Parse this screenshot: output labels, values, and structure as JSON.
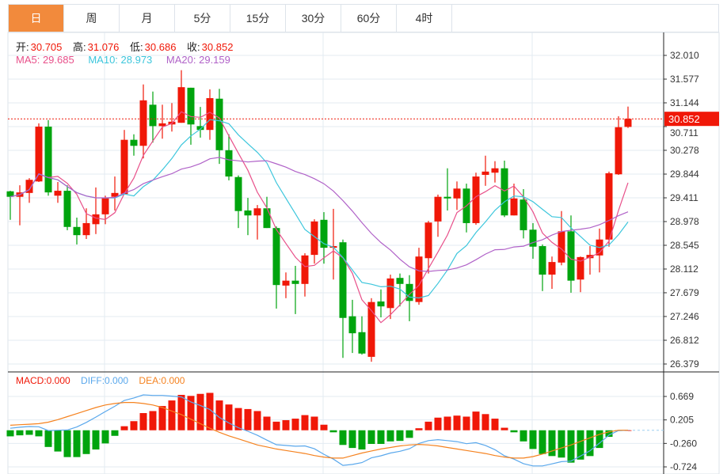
{
  "tabs": [
    {
      "label": "日",
      "active": true
    },
    {
      "label": "周"
    },
    {
      "label": "月"
    },
    {
      "label": "5分"
    },
    {
      "label": "15分"
    },
    {
      "label": "30分"
    },
    {
      "label": "60分"
    },
    {
      "label": "4时"
    }
  ],
  "ohlc_legend": {
    "open_label": "开:",
    "open": "30.705",
    "high_label": "高:",
    "high": "31.076",
    "low_label": "低:",
    "low": "30.686",
    "close_label": "收:",
    "close": "30.852"
  },
  "ma_legend": {
    "ma5": "MA5: 29.685",
    "ma10": "MA10: 28.973",
    "ma20": "MA20: 29.159"
  },
  "macd_legend": {
    "macd": "MACD:0.000",
    "diff": "DIFF:0.000",
    "dea": "DEA:0.000"
  },
  "colors": {
    "up": "#f01808",
    "down": "#00a40e",
    "ma5": "#e8508a",
    "ma10": "#3cc6dc",
    "ma20": "#b062c8",
    "diff": "#5aa8ec",
    "dea": "#f5821f",
    "accent": "#f28a3c"
  },
  "chart_data": [
    {
      "type": "candlestick",
      "title": "Daily",
      "y_ticks": [
        "32.010",
        "31.577",
        "31.144",
        "30.711",
        "30.278",
        "29.844",
        "29.411",
        "28.978",
        "28.545",
        "28.112",
        "27.679",
        "27.246",
        "26.812",
        "26.379"
      ],
      "ylim": [
        26.379,
        32.01
      ],
      "last_price": "30.852",
      "ohlc": [
        [
          29.53,
          29.54,
          29.01,
          29.43
        ],
        [
          29.43,
          29.64,
          28.91,
          29.51
        ],
        [
          29.5,
          29.77,
          29.32,
          29.74
        ],
        [
          29.71,
          30.77,
          29.7,
          30.71
        ],
        [
          30.71,
          30.83,
          29.45,
          29.51
        ],
        [
          29.45,
          29.7,
          29.32,
          29.54
        ],
        [
          29.54,
          29.64,
          28.82,
          28.88
        ],
        [
          28.88,
          29.05,
          28.56,
          28.73
        ],
        [
          28.73,
          29.22,
          28.66,
          28.95
        ],
        [
          28.93,
          29.6,
          28.75,
          29.11
        ],
        [
          29.11,
          29.45,
          28.93,
          29.41
        ],
        [
          29.43,
          29.8,
          29.18,
          29.5
        ],
        [
          29.48,
          30.65,
          29.48,
          30.47
        ],
        [
          30.47,
          30.57,
          30.18,
          30.36
        ],
        [
          30.36,
          31.48,
          30.13,
          31.19
        ],
        [
          31.11,
          31.35,
          30.42,
          30.72
        ],
        [
          30.72,
          31.11,
          30.49,
          30.77
        ],
        [
          30.75,
          31.14,
          30.62,
          30.8
        ],
        [
          30.78,
          31.74,
          30.78,
          31.43
        ],
        [
          31.42,
          31.42,
          30.38,
          30.75
        ],
        [
          30.72,
          31.07,
          30.51,
          30.65
        ],
        [
          30.65,
          31.39,
          30.47,
          31.23
        ],
        [
          31.22,
          31.4,
          30.03,
          30.28
        ],
        [
          30.28,
          30.57,
          29.73,
          29.8
        ],
        [
          29.79,
          29.82,
          28.86,
          29.17
        ],
        [
          29.18,
          29.41,
          28.73,
          29.09
        ],
        [
          29.09,
          29.28,
          28.65,
          29.22
        ],
        [
          29.22,
          29.43,
          28.86,
          28.86
        ],
        [
          28.86,
          28.89,
          27.39,
          27.82
        ],
        [
          27.81,
          28.05,
          27.58,
          27.9
        ],
        [
          27.9,
          28.17,
          27.29,
          27.84
        ],
        [
          27.84,
          28.4,
          27.61,
          28.36
        ],
        [
          28.37,
          29.02,
          28.21,
          28.98
        ],
        [
          29.01,
          29.15,
          28.21,
          28.5
        ],
        [
          28.5,
          29.21,
          27.92,
          28.53
        ],
        [
          28.6,
          28.65,
          26.49,
          27.22
        ],
        [
          27.25,
          27.55,
          26.58,
          26.94
        ],
        [
          26.96,
          27.25,
          26.55,
          26.57
        ],
        [
          26.51,
          27.58,
          26.42,
          27.51
        ],
        [
          27.52,
          27.74,
          27.23,
          27.43
        ],
        [
          27.4,
          28.01,
          27.2,
          27.94
        ],
        [
          27.95,
          28.03,
          27.43,
          27.84
        ],
        [
          27.84,
          28.0,
          27.16,
          27.53
        ],
        [
          27.51,
          28.5,
          27.46,
          28.34
        ],
        [
          28.31,
          28.99,
          28.03,
          28.96
        ],
        [
          28.98,
          29.47,
          28.7,
          29.43
        ],
        [
          29.43,
          29.95,
          29.18,
          29.4
        ],
        [
          29.4,
          29.71,
          29.19,
          29.58
        ],
        [
          29.58,
          29.67,
          28.78,
          28.95
        ],
        [
          28.95,
          29.87,
          28.92,
          29.8
        ],
        [
          29.83,
          30.18,
          29.63,
          29.89
        ],
        [
          29.87,
          30.08,
          29.69,
          29.95
        ],
        [
          29.95,
          30.09,
          29.06,
          29.09
        ],
        [
          29.09,
          29.67,
          29.09,
          29.4
        ],
        [
          29.38,
          29.57,
          28.67,
          28.82
        ],
        [
          28.83,
          28.95,
          28.3,
          28.52
        ],
        [
          28.53,
          28.56,
          27.71,
          28.01
        ],
        [
          28.01,
          28.34,
          27.75,
          28.24
        ],
        [
          28.23,
          29.17,
          28.18,
          28.8
        ],
        [
          28.8,
          29.09,
          27.68,
          27.9
        ],
        [
          27.92,
          28.34,
          27.69,
          28.33
        ],
        [
          28.31,
          28.53,
          28.01,
          28.37
        ],
        [
          28.36,
          28.85,
          28.05,
          28.65
        ],
        [
          28.65,
          29.89,
          28.52,
          29.86
        ],
        [
          29.84,
          30.9,
          29.83,
          30.7
        ],
        [
          30.705,
          31.076,
          30.686,
          30.852
        ]
      ],
      "ohlc_order": [
        "open",
        "high",
        "low",
        "close"
      ],
      "moving_averages": [
        5,
        10,
        20
      ]
    },
    {
      "type": "bar",
      "title": "MACD",
      "y_ticks": [
        "0.669",
        "0.205",
        "-0.260",
        "-0.724"
      ],
      "ylim": [
        -0.724,
        0.669
      ],
      "macd": [
        -0.12,
        -0.1,
        -0.09,
        -0.12,
        -0.33,
        -0.42,
        -0.53,
        -0.53,
        -0.47,
        -0.38,
        -0.26,
        -0.11,
        0.08,
        0.18,
        0.34,
        0.38,
        0.48,
        0.59,
        0.7,
        0.68,
        0.72,
        0.74,
        0.59,
        0.51,
        0.44,
        0.42,
        0.38,
        0.27,
        0.17,
        0.2,
        0.23,
        0.3,
        0.27,
        0.11,
        -0.04,
        -0.29,
        -0.35,
        -0.38,
        -0.27,
        -0.27,
        -0.22,
        -0.21,
        -0.15,
        0.04,
        0.17,
        0.25,
        0.27,
        0.29,
        0.27,
        0.37,
        0.32,
        0.23,
        0.05,
        -0.04,
        -0.22,
        -0.37,
        -0.47,
        -0.51,
        -0.54,
        -0.64,
        -0.58,
        -0.51,
        -0.35,
        -0.13,
        -0.01,
        0.0
      ],
      "dea": [
        0.1,
        0.11,
        0.12,
        0.13,
        0.16,
        0.21,
        0.27,
        0.33,
        0.39,
        0.45,
        0.5,
        0.53,
        0.55,
        0.55,
        0.53,
        0.5,
        0.45,
        0.38,
        0.31,
        0.22,
        0.13,
        0.04,
        -0.04,
        -0.11,
        -0.17,
        -0.23,
        -0.29,
        -0.33,
        -0.37,
        -0.4,
        -0.43,
        -0.46,
        -0.5,
        -0.53,
        -0.55,
        -0.55,
        -0.5,
        -0.45,
        -0.41,
        -0.37,
        -0.34,
        -0.31,
        -0.29,
        -0.28,
        -0.29,
        -0.31,
        -0.34,
        -0.37,
        -0.4,
        -0.43,
        -0.46,
        -0.5,
        -0.53,
        -0.55,
        -0.55,
        -0.52,
        -0.47,
        -0.41,
        -0.35,
        -0.29,
        -0.22,
        -0.15,
        -0.08,
        -0.03,
        0.0,
        0.0
      ]
    }
  ]
}
